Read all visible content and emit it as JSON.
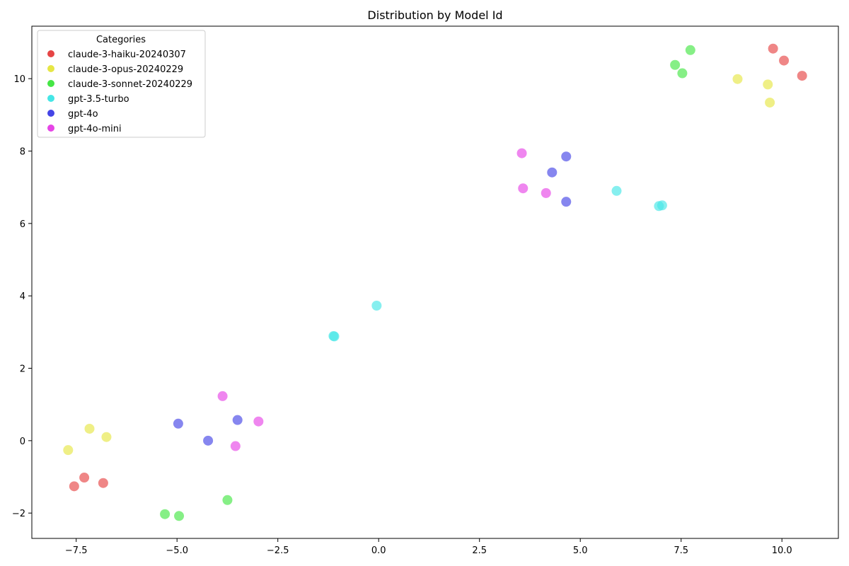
{
  "chart_data": {
    "type": "scatter",
    "title": "Distribution by Model Id",
    "xlabel": "",
    "ylabel": "",
    "xlim": [
      -8.6,
      11.4
    ],
    "ylim": [
      -2.7,
      11.45
    ],
    "xticks": [
      -7.5,
      -5.0,
      -2.5,
      0.0,
      2.5,
      5.0,
      7.5,
      10.0
    ],
    "xtick_labels": [
      "−7.5",
      "−5.0",
      "−2.5",
      "0.0",
      "2.5",
      "5.0",
      "7.5",
      "10.0"
    ],
    "yticks": [
      -2,
      0,
      2,
      4,
      6,
      8,
      10
    ],
    "ytick_labels": [
      "−2",
      "0",
      "2",
      "4",
      "6",
      "8",
      "10"
    ],
    "grid": false,
    "legend": {
      "title": "Categories",
      "placement": "top-left"
    },
    "series": [
      {
        "name": "claude-3-haiku-20240307",
        "color": "#e64545",
        "points": [
          [
            9.78,
            10.83
          ],
          [
            10.05,
            10.5
          ],
          [
            10.5,
            10.08
          ],
          [
            -7.55,
            -1.26
          ],
          [
            -7.3,
            -1.02
          ],
          [
            -6.83,
            -1.17
          ]
        ]
      },
      {
        "name": "claude-3-opus-20240229",
        "color": "#e6e645",
        "points": [
          [
            8.9,
            9.99
          ],
          [
            9.65,
            9.84
          ],
          [
            9.7,
            9.34
          ],
          [
            -7.7,
            -0.26
          ],
          [
            -7.17,
            0.33
          ],
          [
            -6.75,
            0.1
          ]
        ]
      },
      {
        "name": "claude-3-sonnet-20240229",
        "color": "#45e645",
        "points": [
          [
            7.35,
            10.38
          ],
          [
            7.73,
            10.79
          ],
          [
            7.53,
            10.15
          ],
          [
            -5.3,
            -2.03
          ],
          [
            -4.95,
            -2.08
          ],
          [
            -3.75,
            -1.64
          ]
        ]
      },
      {
        "name": "gpt-3.5-turbo",
        "color": "#45e6e6",
        "points": [
          [
            5.9,
            6.9
          ],
          [
            6.95,
            6.48
          ],
          [
            7.03,
            6.5
          ],
          [
            -1.12,
            2.89
          ],
          [
            -1.1,
            2.88
          ],
          [
            -0.05,
            3.73
          ]
        ]
      },
      {
        "name": "gpt-4o",
        "color": "#4545e6",
        "points": [
          [
            4.65,
            7.85
          ],
          [
            4.3,
            7.41
          ],
          [
            4.65,
            6.6
          ],
          [
            -4.97,
            0.47
          ],
          [
            -4.23,
            0.0
          ],
          [
            -3.5,
            0.57
          ]
        ]
      },
      {
        "name": "gpt-4o-mini",
        "color": "#e645e6",
        "points": [
          [
            3.55,
            7.94
          ],
          [
            3.58,
            6.97
          ],
          [
            4.15,
            6.84
          ],
          [
            -3.87,
            1.23
          ],
          [
            -3.55,
            -0.15
          ],
          [
            -2.98,
            0.53
          ]
        ]
      }
    ]
  }
}
